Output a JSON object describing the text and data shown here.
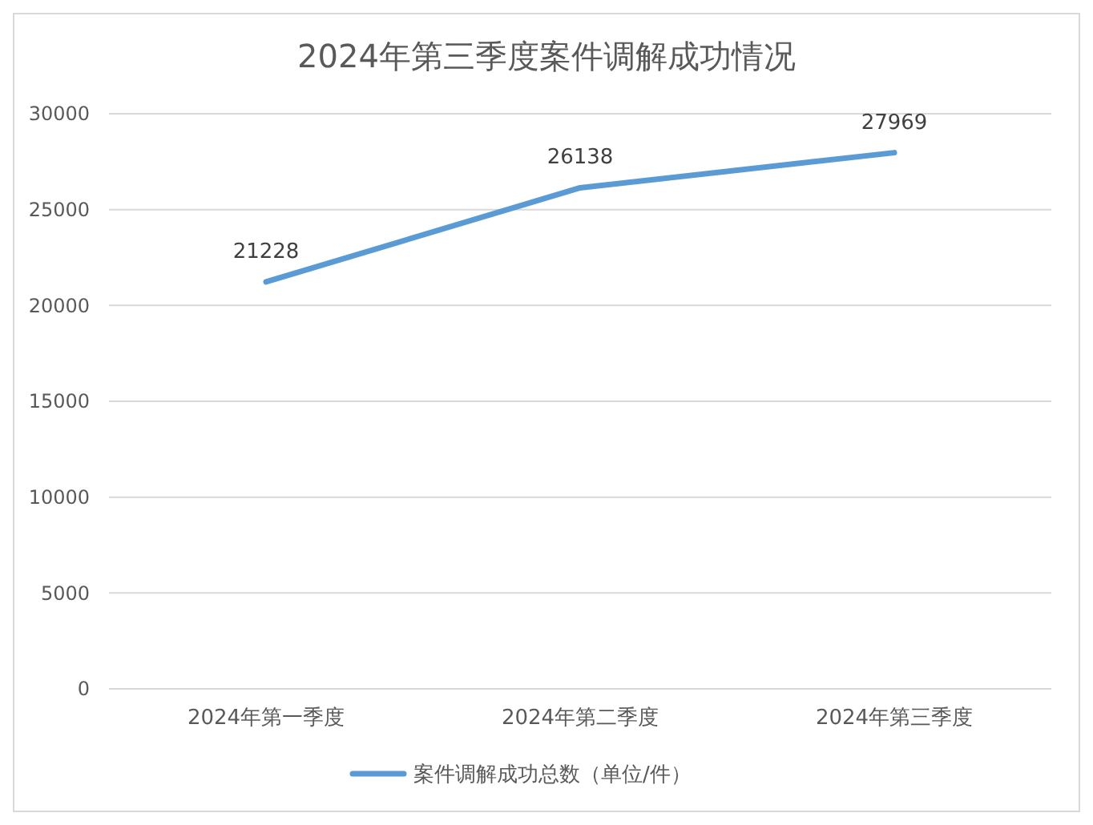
{
  "chart_data": {
    "type": "line",
    "title": "2024年第三季度案件调解成功情况",
    "categories": [
      "2024年第一季度",
      "2024年第二季度",
      "2024年第三季度"
    ],
    "series": [
      {
        "name": "案件调解成功总数（单位/件）",
        "color": "#5b9bd5",
        "values": [
          21228,
          26138,
          27969
        ]
      }
    ],
    "ylim": [
      0,
      30000
    ],
    "yticks": [
      0,
      5000,
      10000,
      15000,
      20000,
      25000,
      30000
    ],
    "grid": "y",
    "legend": "bottom",
    "data_labels": true,
    "marker": "none",
    "line_style": "solid"
  }
}
